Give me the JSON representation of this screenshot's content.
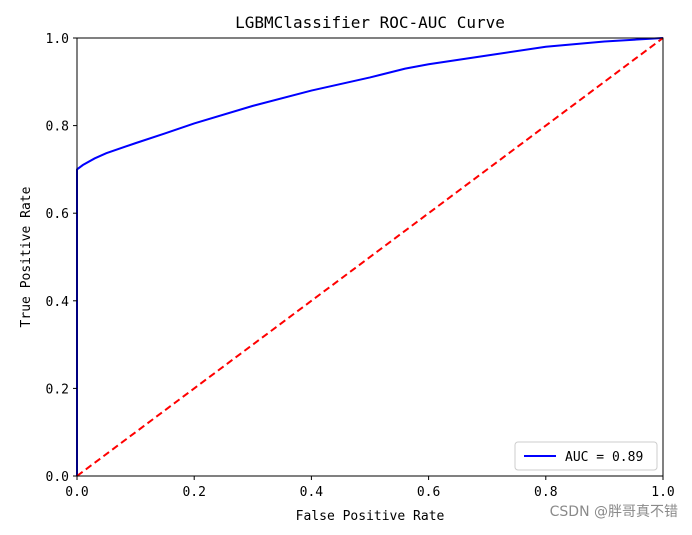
{
  "chart_data": {
    "type": "line",
    "title": "LGBMClassifier ROC-AUC Curve",
    "xlabel": "False Positive Rate",
    "ylabel": "True Positive Rate",
    "xlim": [
      0.0,
      1.0
    ],
    "ylim": [
      0.0,
      1.0
    ],
    "x_ticks": [
      "0.0",
      "0.2",
      "0.4",
      "0.6",
      "0.8",
      "1.0"
    ],
    "y_ticks": [
      "0.0",
      "0.2",
      "0.4",
      "0.6",
      "0.8",
      "1.0"
    ],
    "grid": false,
    "legend_location": "lower right",
    "series": [
      {
        "name": "AUC = 0.89",
        "color": "#0000ff",
        "style": "solid",
        "x": [
          0.0,
          0.0,
          0.01,
          0.03,
          0.05,
          0.1,
          0.15,
          0.2,
          0.3,
          0.4,
          0.5,
          0.56,
          0.6,
          0.7,
          0.8,
          0.9,
          1.0
        ],
        "y": [
          0.0,
          0.7,
          0.71,
          0.725,
          0.737,
          0.76,
          0.782,
          0.805,
          0.845,
          0.88,
          0.91,
          0.93,
          0.94,
          0.96,
          0.98,
          0.992,
          1.0
        ]
      },
      {
        "name": "",
        "color": "#ff0000",
        "style": "dashed",
        "x": [
          0.0,
          1.0
        ],
        "y": [
          0.0,
          1.0
        ]
      }
    ]
  },
  "watermark": "CSDN @胖哥真不错"
}
